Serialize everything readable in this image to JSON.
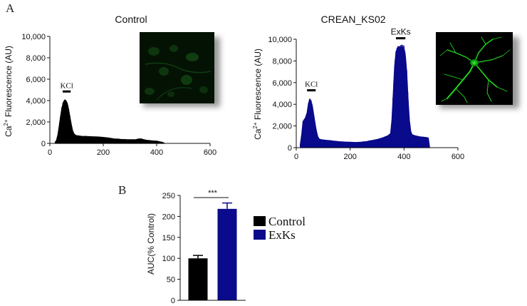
{
  "figure": {
    "panel_a": "A",
    "panel_b": "B"
  },
  "chart_data": [
    {
      "type": "area",
      "title": "Control",
      "ylabel_base": "Ca",
      "ylabel_sup": "2+",
      "ylabel_rest": " Fluorescence (AU)",
      "xlim": [
        0,
        600
      ],
      "ylim": [
        0,
        10000
      ],
      "xticks": [
        "0",
        "200",
        "400",
        "600"
      ],
      "yticks": [
        "0",
        "2,000",
        "4,000",
        "6,000",
        "8,000",
        "10,000"
      ],
      "color": "#000000",
      "annotations": [
        {
          "label": "KCl",
          "x_start": 48,
          "x_end": 78
        }
      ],
      "inset_image": "green fluorescence micrograph (dim cells)",
      "x": [
        20,
        25,
        30,
        35,
        40,
        45,
        50,
        55,
        60,
        65,
        70,
        75,
        80,
        85,
        90,
        95,
        100,
        110,
        120,
        140,
        160,
        180,
        200,
        220,
        240,
        260,
        280,
        300,
        320,
        330,
        340,
        350,
        360,
        380,
        400,
        420,
        430
      ],
      "y": [
        100,
        300,
        800,
        1600,
        2500,
        3300,
        3800,
        4050,
        4000,
        3750,
        3200,
        2500,
        1800,
        1200,
        900,
        780,
        720,
        680,
        650,
        640,
        620,
        600,
        560,
        500,
        420,
        380,
        350,
        340,
        340,
        400,
        430,
        360,
        300,
        250,
        200,
        100,
        0
      ]
    },
    {
      "type": "area",
      "title": "CREAN_KS02",
      "ylabel_base": "Ca",
      "ylabel_sup": "2+",
      "ylabel_rest": " Fluorescence (AU)",
      "xlim": [
        0,
        600
      ],
      "ylim": [
        0,
        10000
      ],
      "xticks": [
        "0",
        "200",
        "400",
        "600"
      ],
      "yticks": [
        "0",
        "2,000",
        "4,000",
        "6,000",
        "8,000",
        "10,000"
      ],
      "color": "#0a0a8c",
      "annotations": [
        {
          "label": "KCl",
          "x_start": 40,
          "x_end": 72
        },
        {
          "label": "ExKs",
          "x_start": 370,
          "x_end": 405
        }
      ],
      "inset_image": "green fluorescent neuron",
      "x": [
        15,
        20,
        25,
        30,
        35,
        40,
        45,
        50,
        55,
        60,
        65,
        70,
        75,
        80,
        85,
        90,
        100,
        120,
        140,
        160,
        180,
        200,
        220,
        240,
        260,
        280,
        300,
        320,
        340,
        350,
        355,
        360,
        365,
        370,
        375,
        380,
        390,
        400,
        405,
        410,
        415,
        420,
        425,
        430,
        440,
        460,
        480,
        490,
        495
      ],
      "y": [
        300,
        1200,
        2400,
        2600,
        2800,
        3200,
        4000,
        4500,
        4300,
        3800,
        3000,
        2200,
        1500,
        1000,
        800,
        750,
        700,
        650,
        600,
        550,
        520,
        500,
        480,
        500,
        550,
        650,
        750,
        900,
        1100,
        1300,
        2500,
        5000,
        7500,
        8800,
        9200,
        9300,
        9300,
        9200,
        8500,
        7000,
        4500,
        2500,
        1500,
        1200,
        1100,
        1000,
        950,
        900,
        0
      ]
    },
    {
      "type": "bar",
      "ylabel": "AUC(% Control)",
      "ylim": [
        0,
        250
      ],
      "yticks": [
        "0",
        "50",
        "100",
        "150",
        "200",
        "250"
      ],
      "categories": [
        "Control",
        "ExKs"
      ],
      "values": [
        100,
        218
      ],
      "errors": [
        7,
        14
      ],
      "colors": [
        "#000000",
        "#0a0a8c"
      ],
      "significance": "***"
    }
  ]
}
